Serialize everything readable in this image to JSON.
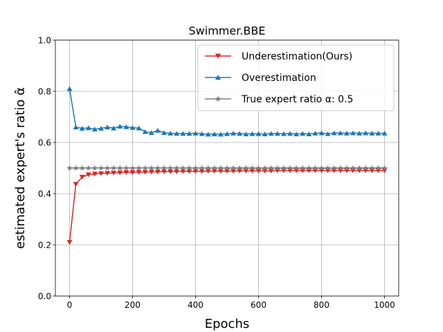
{
  "chart_data": {
    "type": "line",
    "title": "Swimmer.BBE",
    "xlabel": "Epochs",
    "ylabel": "estimated expert's ratio α̂",
    "xlim": [
      -45,
      1045
    ],
    "ylim": [
      0.0,
      1.0
    ],
    "xticks": [
      0,
      200,
      400,
      600,
      800,
      1000
    ],
    "yticks": [
      0.0,
      0.2,
      0.4,
      0.6,
      0.8,
      1.0
    ],
    "xtick_labels": [
      "0",
      "200",
      "400",
      "600",
      "800",
      "1000"
    ],
    "ytick_labels": [
      "0.0",
      "0.2",
      "0.4",
      "0.6",
      "0.8",
      "1.0"
    ],
    "grid": true,
    "legend_position": "top-right",
    "x": [
      0,
      20,
      40,
      60,
      80,
      100,
      120,
      140,
      160,
      180,
      200,
      220,
      240,
      260,
      280,
      300,
      320,
      340,
      360,
      380,
      400,
      420,
      440,
      460,
      480,
      500,
      520,
      540,
      560,
      580,
      600,
      620,
      640,
      660,
      680,
      700,
      720,
      740,
      760,
      780,
      800,
      820,
      840,
      860,
      880,
      900,
      920,
      940,
      960,
      980,
      1000
    ],
    "series": [
      {
        "name": "Underestimation(Ours)",
        "color": "#d62728",
        "marker": "triangle-down",
        "values": [
          0.21,
          0.437,
          0.465,
          0.474,
          0.477,
          0.479,
          0.48,
          0.481,
          0.482,
          0.483,
          0.483,
          0.484,
          0.484,
          0.485,
          0.485,
          0.486,
          0.486,
          0.486,
          0.487,
          0.487,
          0.487,
          0.487,
          0.488,
          0.488,
          0.488,
          0.488,
          0.488,
          0.489,
          0.489,
          0.489,
          0.489,
          0.489,
          0.489,
          0.49,
          0.49,
          0.49,
          0.49,
          0.49,
          0.49,
          0.49,
          0.49,
          0.49,
          0.49,
          0.49,
          0.49,
          0.49,
          0.49,
          0.49,
          0.49,
          0.49,
          0.49
        ]
      },
      {
        "name": "Overestimation",
        "color": "#1f77b4",
        "marker": "triangle-up",
        "values": [
          0.81,
          0.66,
          0.655,
          0.657,
          0.652,
          0.655,
          0.66,
          0.656,
          0.663,
          0.661,
          0.658,
          0.656,
          0.642,
          0.638,
          0.647,
          0.638,
          0.636,
          0.635,
          0.635,
          0.635,
          0.636,
          0.634,
          0.632,
          0.633,
          0.632,
          0.634,
          0.636,
          0.635,
          0.633,
          0.634,
          0.634,
          0.633,
          0.635,
          0.635,
          0.634,
          0.635,
          0.633,
          0.635,
          0.633,
          0.636,
          0.637,
          0.634,
          0.637,
          0.637,
          0.636,
          0.637,
          0.636,
          0.637,
          0.636,
          0.636,
          0.636
        ]
      },
      {
        "name": "True expert ratio α: 0.5",
        "color": "#7f7f7f",
        "marker": "star",
        "values": [
          0.5,
          0.5,
          0.5,
          0.5,
          0.5,
          0.5,
          0.5,
          0.5,
          0.5,
          0.5,
          0.5,
          0.5,
          0.5,
          0.5,
          0.5,
          0.5,
          0.5,
          0.5,
          0.5,
          0.5,
          0.5,
          0.5,
          0.5,
          0.5,
          0.5,
          0.5,
          0.5,
          0.5,
          0.5,
          0.5,
          0.5,
          0.5,
          0.5,
          0.5,
          0.5,
          0.5,
          0.5,
          0.5,
          0.5,
          0.5,
          0.5,
          0.5,
          0.5,
          0.5,
          0.5,
          0.5,
          0.5,
          0.5,
          0.5,
          0.5,
          0.5
        ]
      }
    ]
  }
}
